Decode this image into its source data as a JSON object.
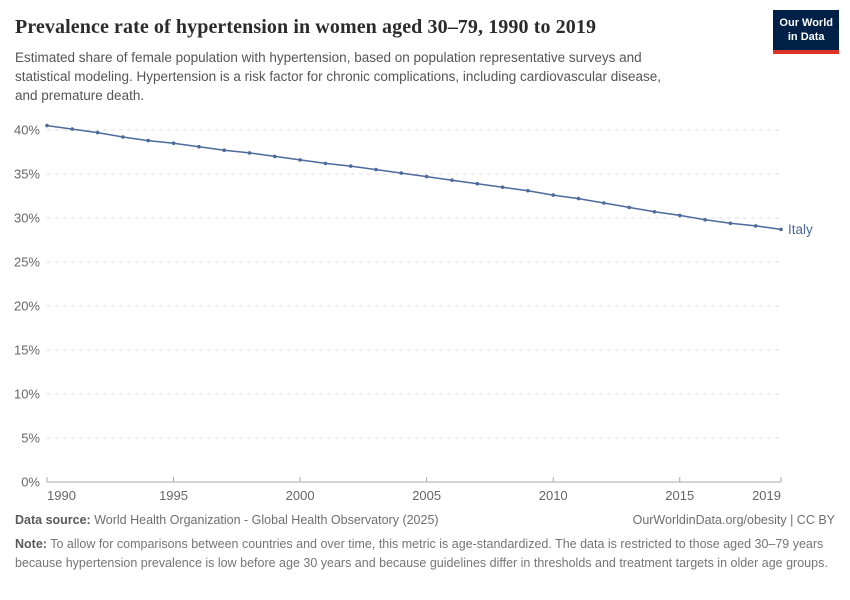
{
  "header": {
    "title": "Prevalence rate of hypertension in women aged 30–79, 1990 to 2019",
    "logo_line1": "Our World",
    "logo_line2": "in Data"
  },
  "subtitle": "Estimated share of female population with hypertension, based on population representative surveys and\nstatistical modeling. Hypertension is a risk factor for chronic complications, including cardiovascular disease,\nand premature death.",
  "chart_data": {
    "type": "line",
    "title": "Prevalence rate of hypertension in women aged 30-79",
    "x": [
      1990,
      1991,
      1992,
      1993,
      1994,
      1995,
      1996,
      1997,
      1998,
      1999,
      2000,
      2001,
      2002,
      2003,
      2004,
      2005,
      2006,
      2007,
      2008,
      2009,
      2010,
      2011,
      2012,
      2013,
      2014,
      2015,
      2016,
      2017,
      2018,
      2019
    ],
    "series": [
      {
        "name": "Italy",
        "color": "#4C6A9C",
        "values": [
          40.5,
          40.1,
          39.7,
          39.2,
          38.8,
          38.5,
          38.1,
          37.7,
          37.4,
          37.0,
          36.6,
          36.2,
          35.9,
          35.5,
          35.1,
          34.7,
          34.3,
          33.9,
          33.5,
          33.1,
          32.6,
          32.2,
          31.7,
          31.2,
          30.7,
          30.3,
          29.8,
          29.4,
          29.1,
          28.7
        ]
      }
    ],
    "ylim": [
      0,
      42
    ],
    "yticks": [
      0,
      5,
      10,
      15,
      20,
      25,
      30,
      35,
      40
    ],
    "ytick_suffix": "%",
    "xticks": [
      1990,
      1995,
      2000,
      2005,
      2010,
      2015,
      2019
    ],
    "grid": "horizontal-dashed",
    "legend": "end-of-line-label",
    "entity_label": "Italy"
  },
  "colors": {
    "line": "#4C6A9C",
    "grid": "#dedede",
    "axis": "#a8a8a8",
    "tick_label": "#666666",
    "logo_bg": "#002147",
    "logo_red": "#dc3328"
  },
  "footer": {
    "source_label": "Data source:",
    "source_text": " World Health Organization - Global Health Observatory (2025)",
    "attribution": "OurWorldinData.org/obesity | CC BY",
    "note_label": "Note:",
    "note_text": " To allow for comparisons between countries and over time, this metric is age-standardized. The data is restricted to those aged 30–79 years because hypertension prevalence is low before age 30 years and because guidelines differ in thresholds and treatment targets in older age groups."
  }
}
